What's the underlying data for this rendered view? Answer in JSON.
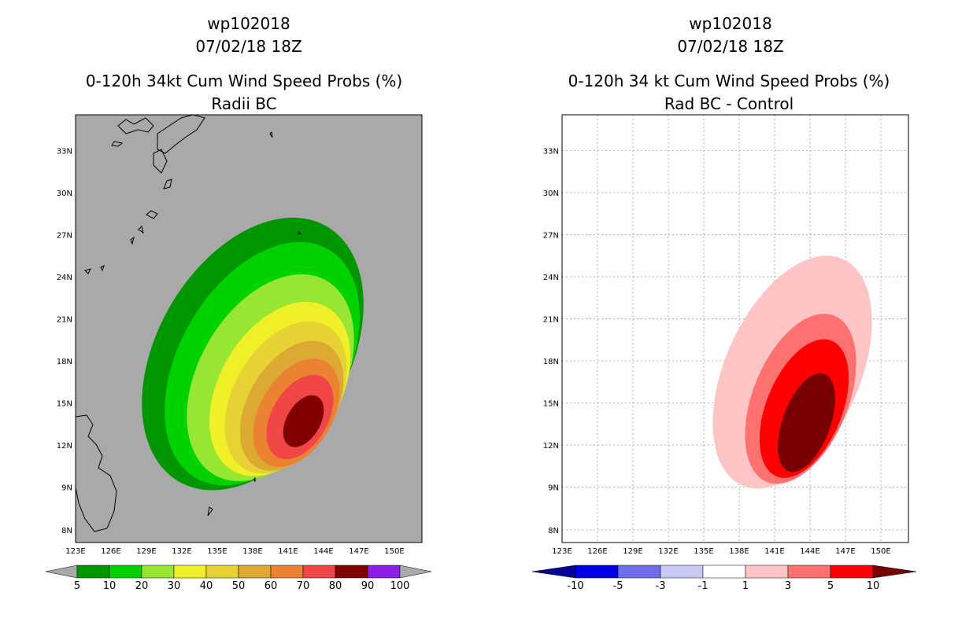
{
  "chart_data": [
    {
      "type": "heatmap",
      "title_lines": [
        "wp102018",
        "07/02/18 18Z",
        "0-120h 34kt Cum Wind Speed Probs (%)",
        "Radii BC"
      ],
      "x_ticks": [
        "123E",
        "126E",
        "129E",
        "132E",
        "135E",
        "138E",
        "141E",
        "144E",
        "147E",
        "150E"
      ],
      "y_ticks": [
        "8N",
        "9N",
        "12N",
        "15N",
        "18N",
        "21N",
        "24N",
        "27N",
        "30N",
        "33N"
      ],
      "background_color": "#a9a9a9",
      "gridlines": false,
      "colorbar": {
        "labels": [
          "5",
          "10",
          "20",
          "30",
          "40",
          "50",
          "60",
          "70",
          "80",
          "90",
          "100"
        ],
        "colors": [
          "#009600",
          "#00d200",
          "#96e632",
          "#f0f028",
          "#e6d232",
          "#dcaa32",
          "#eb8232",
          "#f04646",
          "#820000",
          "#8c1ee6"
        ],
        "under_color": "#a9a9a9",
        "over_color": "#a9a9a9"
      },
      "contours": [
        {
          "level": 5,
          "color": "#009600",
          "center_lon": 138.0,
          "center_lat": 18.5,
          "rx_deg": 12.5,
          "ry_deg": 6.8,
          "angle_deg": -60
        },
        {
          "level": 10,
          "color": "#00d200",
          "center_lon": 138.8,
          "center_lat": 17.8,
          "rx_deg": 11.2,
          "ry_deg": 5.9,
          "angle_deg": -60
        },
        {
          "level": 20,
          "color": "#96e632",
          "center_lon": 139.5,
          "center_lat": 16.8,
          "rx_deg": 9.5,
          "ry_deg": 5.1,
          "angle_deg": -60
        },
        {
          "level": 30,
          "color": "#f0f028",
          "center_lon": 140.3,
          "center_lat": 16.0,
          "rx_deg": 8.0,
          "ry_deg": 4.3,
          "angle_deg": -60
        },
        {
          "level": 40,
          "color": "#e6d232",
          "center_lon": 140.8,
          "center_lat": 15.4,
          "rx_deg": 7.0,
          "ry_deg": 3.7,
          "angle_deg": -60
        },
        {
          "level": 50,
          "color": "#dcaa32",
          "center_lon": 141.3,
          "center_lat": 14.8,
          "rx_deg": 6.0,
          "ry_deg": 3.1,
          "angle_deg": -60
        },
        {
          "level": 60,
          "color": "#eb8232",
          "center_lon": 141.7,
          "center_lat": 14.3,
          "rx_deg": 5.0,
          "ry_deg": 2.6,
          "angle_deg": -60
        },
        {
          "level": 70,
          "color": "#f04646",
          "center_lon": 142.0,
          "center_lat": 14.0,
          "rx_deg": 3.9,
          "ry_deg": 2.0,
          "angle_deg": -60
        },
        {
          "level": 80,
          "color": "#820000",
          "center_lon": 142.3,
          "center_lat": 13.7,
          "rx_deg": 2.4,
          "ry_deg": 1.2,
          "angle_deg": -60
        }
      ]
    },
    {
      "type": "heatmap",
      "title_lines": [
        "wp102018",
        "07/02/18 18Z",
        "0-120h 34 kt Cum Wind Speed Probs (%)",
        "Rad BC - Control"
      ],
      "x_ticks": [
        "123E",
        "126E",
        "129E",
        "132E",
        "135E",
        "138E",
        "141E",
        "144E",
        "147E",
        "150E"
      ],
      "y_ticks": [
        "8N",
        "9N",
        "12N",
        "15N",
        "18N",
        "21N",
        "24N",
        "27N",
        "30N",
        "33N"
      ],
      "background_color": "#ffffff",
      "gridlines": true,
      "colorbar": {
        "labels": [
          "-10",
          "-5",
          "-3",
          "-1",
          "1",
          "3",
          "5",
          "10"
        ],
        "colors": [
          "#0000e6",
          "#6e6eeb",
          "#c8c8f5",
          "#ffffff",
          "#ffc4c4",
          "#ff7070",
          "#ff0000"
        ],
        "under_color": "#000096",
        "over_color": "#780000"
      },
      "contours": [
        {
          "level": 1,
          "color": "#ffc4c4",
          "center_lon": 142.5,
          "center_lat": 17.2,
          "rx_deg": 10.5,
          "ry_deg": 4.8,
          "angle_deg": -66
        },
        {
          "level": 3,
          "color": "#ff7070",
          "center_lon": 143.2,
          "center_lat": 15.3,
          "rx_deg": 7.6,
          "ry_deg": 3.4,
          "angle_deg": -68
        },
        {
          "level": 5,
          "color": "#ff0000",
          "center_lon": 143.5,
          "center_lat": 14.6,
          "rx_deg": 6.2,
          "ry_deg": 2.7,
          "angle_deg": -68
        },
        {
          "level": 10,
          "color": "#780000",
          "center_lon": 143.7,
          "center_lat": 13.6,
          "rx_deg": 4.4,
          "ry_deg": 1.7,
          "angle_deg": -70
        }
      ]
    }
  ]
}
